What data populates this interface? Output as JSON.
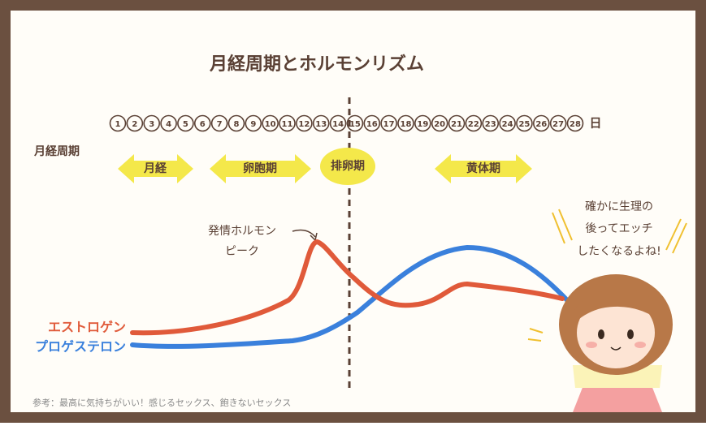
{
  "header": {
    "title": "月経周期とホルモンリズム"
  },
  "days": [
    1,
    2,
    3,
    4,
    5,
    6,
    7,
    8,
    9,
    10,
    11,
    12,
    13,
    14,
    15,
    16,
    17,
    18,
    19,
    20,
    21,
    22,
    23,
    24,
    25,
    26,
    27,
    28
  ],
  "day_unit": "日",
  "row_label": "月経周期",
  "phases": [
    "月経",
    "卵胞期",
    "排卵期",
    "黄体期"
  ],
  "annotation": [
    "発情ホルモン",
    "ピーク"
  ],
  "legend": [
    "エストロゲン",
    "プロゲステロン"
  ],
  "speech": [
    "確かに生理の",
    "後ってエッチ",
    "したくなるよね!"
  ],
  "footer": "参考：最高に気持ちがいい！感じるセックス、飽きないセックス"
}
